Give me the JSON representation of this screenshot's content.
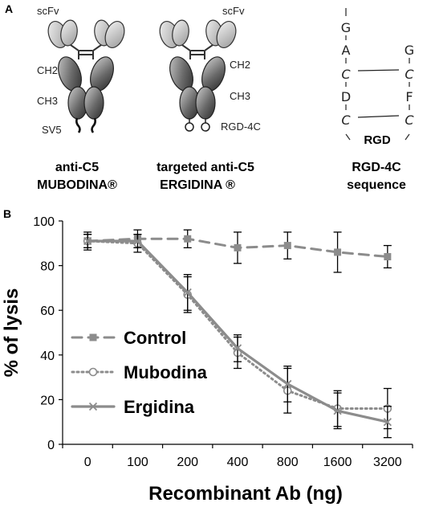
{
  "panel_a": {
    "panel_label": "A",
    "antibody_left": {
      "label_scfv": "scFv",
      "label_ch2": "CH2",
      "label_ch3": "CH3",
      "label_tag": "SV5",
      "caption_line1": "anti-C5",
      "caption_line2": "MUBODINA®"
    },
    "antibody_right": {
      "label_scfv": "scFv",
      "label_ch2": "CH2",
      "label_ch3": "CH3",
      "label_tag": "RGD-4C",
      "caption_line1": "targeted  anti-C5",
      "caption_line2": "ERGIDINA ®"
    },
    "sequence": {
      "left_column": [
        "G",
        "A",
        "C",
        "D",
        "C"
      ],
      "right_column": [
        "G",
        "C",
        "F",
        "C"
      ],
      "center_label": "RGD",
      "caption_line1": "RGD-4C",
      "caption_line2": "sequence"
    }
  },
  "chart_data": {
    "panel_label": "B",
    "type": "line",
    "categories": [
      "0",
      "100",
      "200",
      "400",
      "800",
      "1600",
      "3200"
    ],
    "ylabel": "% of lysis",
    "xlabel": "Recombinant Ab (ng)",
    "ylim": [
      0,
      100
    ],
    "yticks": [
      "0",
      "20",
      "40",
      "60",
      "80",
      "100"
    ],
    "legend_position": "left-center",
    "series": [
      {
        "name": "Control",
        "color": "#8c8c8c",
        "style": "dashed",
        "marker": "square",
        "values": [
          91,
          92,
          92,
          88,
          89,
          86,
          84
        ],
        "errors": [
          4,
          4,
          4,
          7,
          6,
          9,
          5
        ]
      },
      {
        "name": "Mubodina",
        "color": "#8c8c8c",
        "style": "dotted",
        "marker": "circle",
        "values": [
          91,
          90,
          67,
          41,
          24,
          16,
          16
        ],
        "errors": [
          3,
          4,
          8,
          7,
          10,
          8,
          9
        ]
      },
      {
        "name": "Ergidina",
        "color": "#8c8c8c",
        "style": "solid",
        "marker": "x",
        "values": [
          91,
          91,
          68,
          43,
          27,
          15,
          10
        ],
        "errors": [
          3,
          3,
          8,
          6,
          8,
          8,
          7
        ]
      }
    ]
  }
}
